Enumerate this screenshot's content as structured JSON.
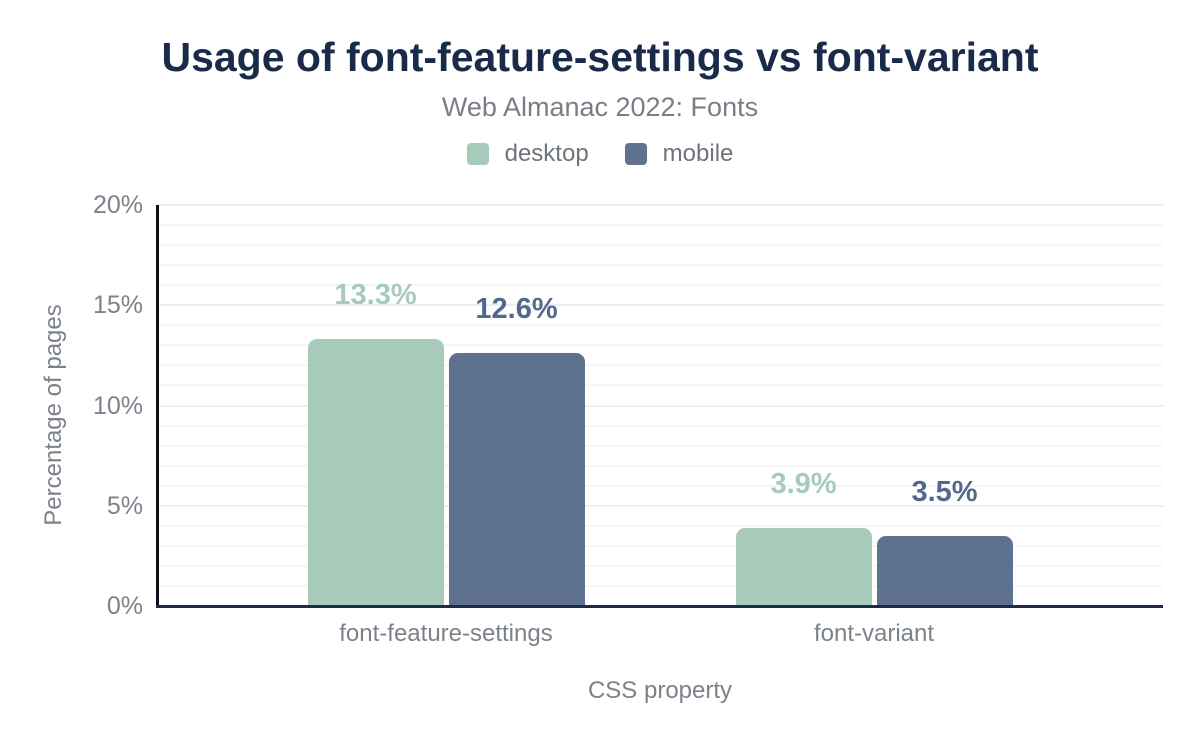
{
  "header": {
    "title": "Usage of font-feature-settings vs font-variant",
    "subtitle": "Web Almanac 2022: Fonts"
  },
  "chart_data": {
    "type": "bar",
    "title": "Usage of font-feature-settings vs font-variant",
    "subtitle": "Web Almanac 2022: Fonts",
    "categories": [
      "font-feature-settings",
      "font-variant"
    ],
    "series": [
      {
        "name": "desktop",
        "color": "#a7cabb",
        "label_color": "#a7cabb",
        "values": [
          13.3,
          3.9
        ],
        "value_labels": [
          "13.3%",
          "3.9%"
        ]
      },
      {
        "name": "mobile",
        "color": "#5e7290",
        "label_color": "#53688c",
        "values": [
          12.6,
          3.5
        ],
        "value_labels": [
          "12.6%",
          "3.5%"
        ]
      }
    ],
    "xlabel": "CSS property",
    "ylabel": "Percentage of pages",
    "ylim": [
      0,
      20
    ],
    "ytick_values": [
      0,
      5,
      10,
      15,
      20
    ],
    "yticks": [
      "0%",
      "5%",
      "10%",
      "15%",
      "20%"
    ],
    "grid": "horizontal minor every 1%, major every 5%",
    "legend_position": "top"
  },
  "colors": {
    "title_text": "#1a2b49",
    "muted_text": "#7c8289",
    "axis_bottom": "#1b2b49",
    "axis_left": "#0b0f16",
    "grid_minor": "#f5f6f8",
    "grid_major": "#edeff2",
    "background": "#ffffff"
  }
}
